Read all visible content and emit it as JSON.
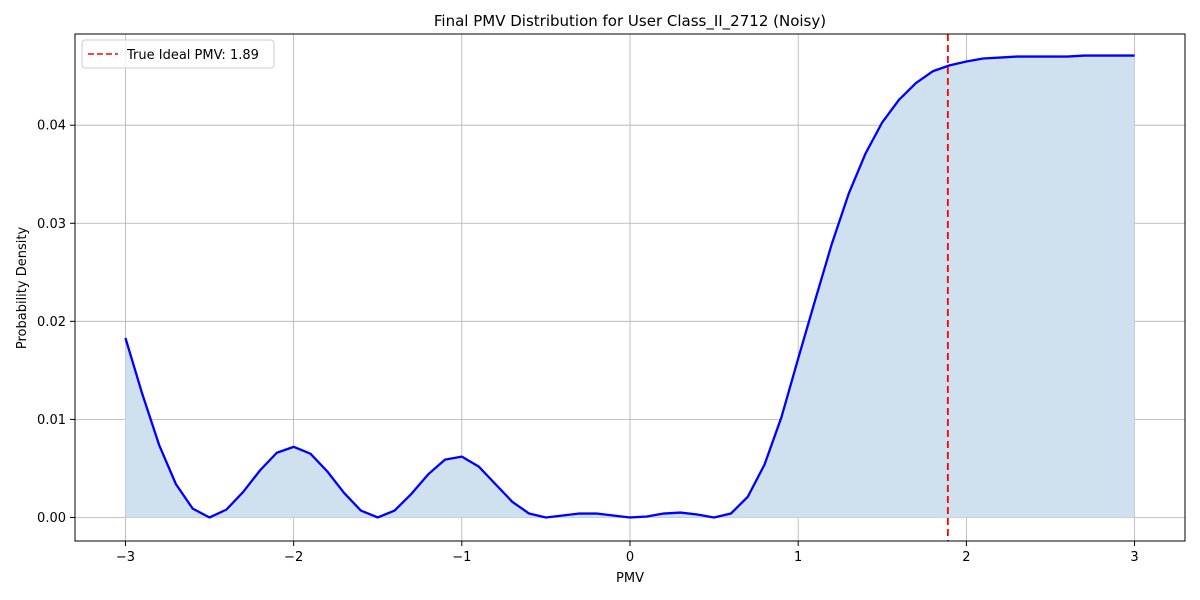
{
  "chart_data": {
    "type": "area",
    "title": "Final PMV Distribution for User Class_II_2712 (Noisy)",
    "xlabel": "PMV",
    "ylabel": "Probability Density",
    "xlim": [
      -3.3,
      3.3
    ],
    "ylim": [
      -0.0024,
      0.0493
    ],
    "x_ticks": [
      -3,
      -2,
      -1,
      0,
      1,
      2,
      3
    ],
    "x_tick_labels": [
      "−3",
      "−2",
      "−1",
      "0",
      "1",
      "2",
      "3"
    ],
    "y_ticks": [
      0.0,
      0.01,
      0.02,
      0.03,
      0.04
    ],
    "y_tick_labels": [
      "0.00",
      "0.01",
      "0.02",
      "0.03",
      "0.04"
    ],
    "grid": true,
    "legend_position": "top-left",
    "series": [
      {
        "color": "#0000ff",
        "fill_color": "#cfe1ee",
        "x": [
          -3.0,
          -2.9,
          -2.8,
          -2.7,
          -2.6,
          -2.5,
          -2.4,
          -2.3,
          -2.2,
          -2.1,
          -2.0,
          -1.9,
          -1.8,
          -1.7,
          -1.6,
          -1.5,
          -1.4,
          -1.3,
          -1.2,
          -1.1,
          -1.0,
          -0.9,
          -0.8,
          -0.7,
          -0.6,
          -0.5,
          -0.4,
          -0.3,
          -0.2,
          -0.1,
          0.0,
          0.1,
          0.2,
          0.3,
          0.4,
          0.5,
          0.6,
          0.7,
          0.8,
          0.9,
          1.0,
          1.1,
          1.2,
          1.3,
          1.4,
          1.5,
          1.6,
          1.7,
          1.8,
          1.9,
          2.0,
          2.1,
          2.2,
          2.3,
          2.4,
          2.5,
          2.6,
          2.7,
          2.8,
          2.9,
          3.0
        ],
        "y": [
          0.0183,
          0.0126,
          0.0074,
          0.0034,
          0.0009,
          0.0,
          0.0008,
          0.0026,
          0.0048,
          0.0066,
          0.0072,
          0.0065,
          0.0047,
          0.0025,
          0.0007,
          0.0,
          0.0007,
          0.0024,
          0.0044,
          0.0059,
          0.0062,
          0.0052,
          0.0034,
          0.0016,
          0.0004,
          0.0,
          0.0002,
          0.0004,
          0.0004,
          0.0002,
          0.0,
          0.0001,
          0.0004,
          0.0005,
          0.0003,
          0.0,
          0.0004,
          0.0021,
          0.0054,
          0.0102,
          0.0162,
          0.0221,
          0.0279,
          0.033,
          0.0371,
          0.0403,
          0.0426,
          0.0443,
          0.0455,
          0.0461,
          0.0465,
          0.0468,
          0.0469,
          0.047,
          0.047,
          0.047,
          0.047,
          0.0471,
          0.0471,
          0.0471,
          0.0471
        ]
      }
    ],
    "reference_line": {
      "x": 1.89,
      "color": "#ff0000",
      "label": "True Ideal PMV: 1.89"
    }
  }
}
